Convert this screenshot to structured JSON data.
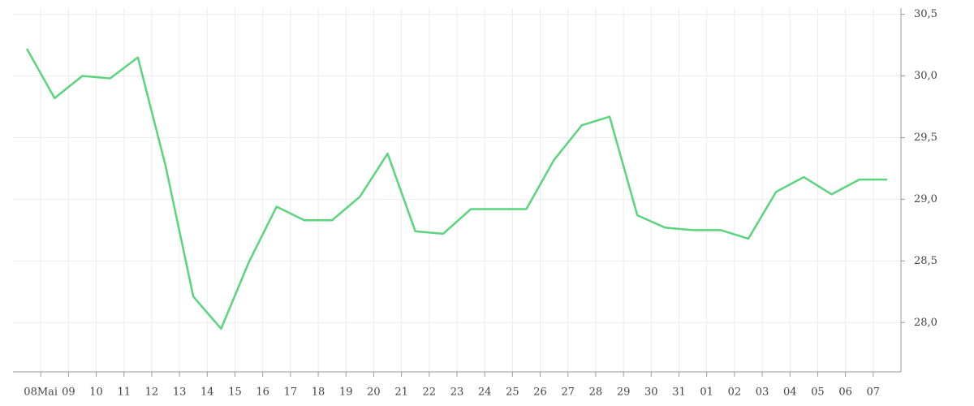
{
  "chart_data": {
    "type": "line",
    "x": [
      -0.5,
      0.5,
      1.5,
      2.5,
      3.5,
      4.5,
      5.5,
      6.5,
      7.5,
      8.5,
      9.5,
      10.5,
      11.5,
      12.5,
      13.5,
      14.5,
      15.5,
      16.5,
      17.5,
      18.5,
      19.5,
      20.5,
      21.5,
      22.5,
      23.5,
      24.5,
      25.5,
      26.5,
      27.5,
      28.5,
      29.5,
      30.5
    ],
    "series": [
      {
        "color": "#5ad57e",
        "values": [
          30.22,
          29.82,
          30.0,
          29.98,
          30.15,
          29.27,
          28.21,
          27.95,
          28.49,
          28.94,
          28.83,
          28.83,
          29.02,
          29.37,
          28.74,
          28.72,
          28.92,
          28.92,
          28.92,
          29.32,
          29.6,
          29.67,
          28.87,
          28.77,
          28.75,
          28.75,
          28.68,
          29.06,
          29.18,
          29.04,
          29.16,
          29.16
        ]
      }
    ],
    "xlim": [
      -1,
      31
    ],
    "xticks": [
      {
        "value": 0,
        "label": "08Mai"
      },
      {
        "value": 1,
        "label": "09"
      },
      {
        "value": 2,
        "label": "10"
      },
      {
        "value": 3,
        "label": "11"
      },
      {
        "value": 4,
        "label": "12"
      },
      {
        "value": 5,
        "label": "13"
      },
      {
        "value": 6,
        "label": "14"
      },
      {
        "value": 7,
        "label": "15"
      },
      {
        "value": 8,
        "label": "16"
      },
      {
        "value": 9,
        "label": "17"
      },
      {
        "value": 10,
        "label": "18"
      },
      {
        "value": 11,
        "label": "19"
      },
      {
        "value": 12,
        "label": "20"
      },
      {
        "value": 13,
        "label": "21"
      },
      {
        "value": 14,
        "label": "22"
      },
      {
        "value": 15,
        "label": "23"
      },
      {
        "value": 16,
        "label": "24"
      },
      {
        "value": 17,
        "label": "25"
      },
      {
        "value": 18,
        "label": "26"
      },
      {
        "value": 19,
        "label": "27"
      },
      {
        "value": 20,
        "label": "28"
      },
      {
        "value": 21,
        "label": "29"
      },
      {
        "value": 22,
        "label": "30"
      },
      {
        "value": 23,
        "label": "31"
      },
      {
        "value": 24,
        "label": "01"
      },
      {
        "value": 25,
        "label": "02"
      },
      {
        "value": 26,
        "label": "03"
      },
      {
        "value": 27,
        "label": "04"
      },
      {
        "value": 28,
        "label": "05"
      },
      {
        "value": 29,
        "label": "06"
      },
      {
        "value": 30,
        "label": "07"
      }
    ],
    "ylim": [
      27.6,
      30.55
    ],
    "yticks": [
      {
        "value": 28.0,
        "label": "28,0"
      },
      {
        "value": 28.5,
        "label": "28,5"
      },
      {
        "value": 29.0,
        "label": "29,0"
      },
      {
        "value": 29.5,
        "label": "29,5"
      },
      {
        "value": 30.0,
        "label": "30,0"
      },
      {
        "value": 30.5,
        "label": "30,5"
      }
    ],
    "grid": true
  }
}
